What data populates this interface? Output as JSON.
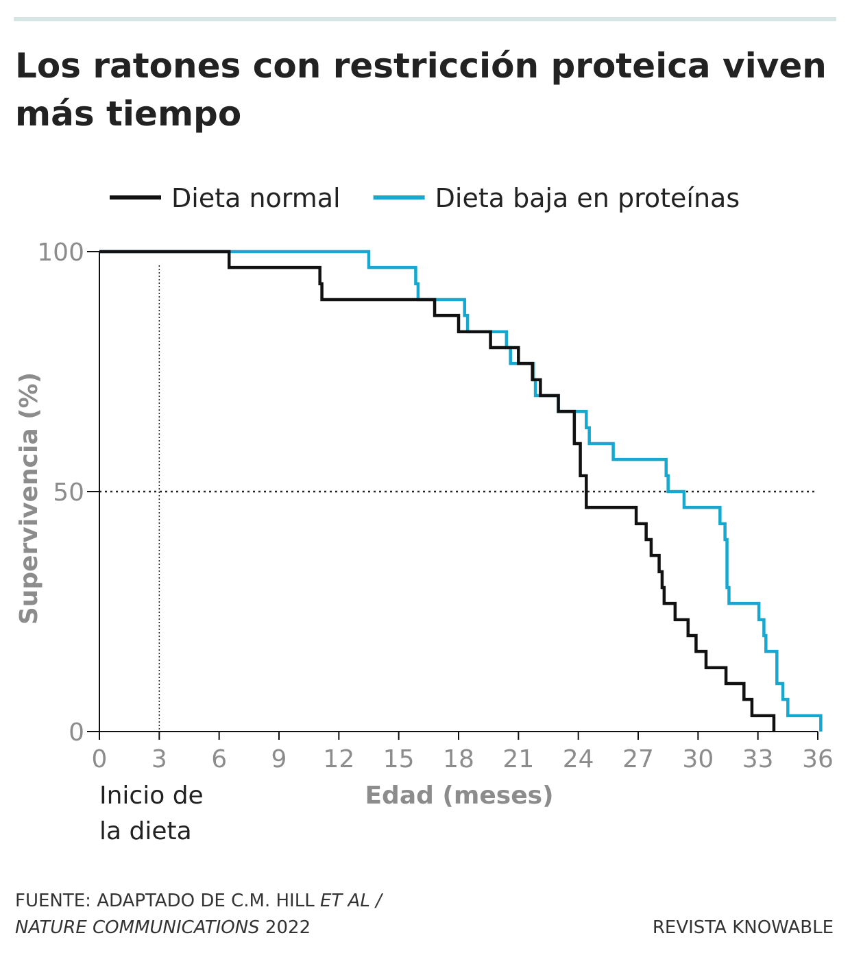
{
  "chart_data": {
    "type": "step-line",
    "title": [
      "Los ratones con restricción proteica viven",
      "más tiempo"
    ],
    "x_label": "Edad (meses)",
    "y_label": "Supervivencia (%)",
    "xlim": [
      0,
      36
    ],
    "ylim": [
      0,
      100
    ],
    "xticks": [
      0,
      3,
      6,
      9,
      12,
      15,
      18,
      21,
      24,
      27,
      30,
      33,
      36
    ],
    "yticks": [
      0,
      50,
      100
    ],
    "legend_position": "top",
    "reference_lines": {
      "x": 3,
      "y": 50
    },
    "annotation": {
      "x": 3,
      "lines": [
        "Inicio de",
        "la dieta"
      ]
    },
    "series": [
      {
        "name": "Dieta normal",
        "color": "#111111",
        "x": [
          0,
          6.5,
          11.05,
          11.15,
          16.8,
          18.0,
          19.6,
          21.0,
          21.7,
          22.1,
          23.0,
          23.8,
          24.1,
          24.4,
          26.9,
          27.4,
          27.65,
          28.05,
          28.2,
          28.3,
          28.85,
          29.5,
          29.9,
          30.4,
          31.4,
          32.3,
          32.7,
          33.8
        ],
        "values": [
          100,
          96.7,
          93.3,
          90,
          86.7,
          83.3,
          80,
          76.7,
          73.3,
          70,
          66.7,
          60,
          53.3,
          46.7,
          43.3,
          40,
          36.7,
          33.3,
          30,
          26.7,
          23.3,
          20,
          16.7,
          13.3,
          10,
          6.7,
          3.3,
          0
        ]
      },
      {
        "name": "Dieta baja en proteínas",
        "color": "#17a8cf",
        "x": [
          0,
          13.5,
          15.85,
          15.97,
          18.3,
          18.45,
          20.4,
          20.6,
          21.75,
          21.85,
          23.0,
          24.4,
          24.55,
          25.75,
          28.4,
          28.5,
          29.3,
          31.1,
          31.35,
          31.45,
          31.55,
          33.05,
          33.3,
          33.4,
          33.95,
          34.25,
          34.5,
          36.15
        ],
        "values": [
          100,
          96.7,
          93.3,
          90,
          86.7,
          83.3,
          80,
          76.7,
          73.3,
          70,
          66.7,
          63.3,
          60,
          56.7,
          53.3,
          50,
          46.7,
          43.3,
          40,
          30,
          26.7,
          23.3,
          20,
          16.7,
          10,
          6.7,
          3.3,
          0
        ]
      }
    ],
    "source": [
      "FUENTE: ADAPTADO DE C.M. HILL ",
      "ET AL",
      " /",
      "NATURE COMMUNICATIONS",
      " 2022"
    ],
    "credit": "REVISTA KNOWABLE"
  }
}
